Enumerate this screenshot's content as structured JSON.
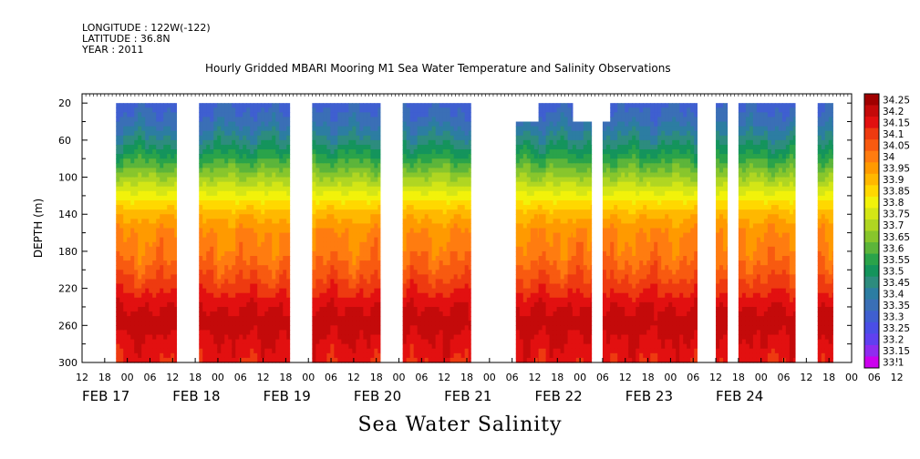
{
  "header": {
    "longitude": "LONGITUDE : 122W(-122)",
    "latitude": "LATITUDE : 36.8N",
    "year": "YEAR : 2011"
  },
  "chart_data": {
    "type": "heatmap",
    "title": "Hourly Gridded MBARI Mooring M1 Sea Water Temperature and Salinity Observations",
    "xlabel": "Sea Water Salinity",
    "ylabel": "DEPTH (m)",
    "x_range_hours": [
      12,
      216
    ],
    "x_ticks": {
      "hour_labels": [
        "12",
        "18",
        "00",
        "06",
        "12",
        "18",
        "00",
        "06",
        "12",
        "18",
        "00",
        "06",
        "12",
        "18",
        "00",
        "06",
        "12",
        "18",
        "00",
        "06",
        "12",
        "18",
        "00",
        "06",
        "12",
        "18",
        "00",
        "06",
        "12",
        "18",
        "00",
        "06",
        "12",
        "18",
        "00",
        "06",
        "12"
      ],
      "day_labels": [
        "FEB 17",
        "FEB 18",
        "FEB 19",
        "FEB 20",
        "FEB 21",
        "FEB 22",
        "FEB 23",
        "FEB 24"
      ]
    },
    "y_range": [
      10,
      300
    ],
    "y_reversed": true,
    "y_ticks": [
      20,
      60,
      100,
      140,
      180,
      220,
      260,
      300
    ],
    "color_levels": [
      33.1,
      33.15,
      33.2,
      33.25,
      33.3,
      33.35,
      33.4,
      33.45,
      33.5,
      33.55,
      33.6,
      33.65,
      33.7,
      33.75,
      33.8,
      33.85,
      33.9,
      33.95,
      34,
      34.05,
      34.1,
      34.15,
      34.2,
      34.25
    ],
    "colorbar_labels": [
      "34.25",
      "34.2",
      "34.15",
      "34.1",
      "34.05",
      "34",
      "33.95",
      "33.9",
      "33.85",
      "33.8",
      "33.75",
      "33.7",
      "33.65",
      "33.6",
      "33.55",
      "33.5",
      "33.45",
      "33.4",
      "33.35",
      "33.3",
      "33.25",
      "33.2",
      "33.15",
      "33.1"
    ],
    "colors": [
      "#cc00ee",
      "#8f2cf0",
      "#6040f0",
      "#4a4ee6",
      "#3f5fd0",
      "#3a6fb6",
      "#2c7da2",
      "#2d8c7e",
      "#14945c",
      "#2aa34a",
      "#5cb53a",
      "#88c62c",
      "#b0d622",
      "#d4e616",
      "#f2f20a",
      "#ffd800",
      "#ffb800",
      "#ff9a00",
      "#ff7c10",
      "#f85a10",
      "#ee3a10",
      "#e21010",
      "#c40a0a",
      "#a00000"
    ],
    "profile": [
      {
        "depth": 20,
        "salinity": 33.33
      },
      {
        "depth": 40,
        "salinity": 33.38
      },
      {
        "depth": 60,
        "salinity": 33.47
      },
      {
        "depth": 80,
        "salinity": 33.58
      },
      {
        "depth": 100,
        "salinity": 33.7
      },
      {
        "depth": 120,
        "salinity": 33.82
      },
      {
        "depth": 140,
        "salinity": 33.93
      },
      {
        "depth": 160,
        "salinity": 34.0
      },
      {
        "depth": 180,
        "salinity": 34.02
      },
      {
        "depth": 200,
        "salinity": 34.07
      },
      {
        "depth": 220,
        "salinity": 34.13
      },
      {
        "depth": 240,
        "salinity": 34.2
      },
      {
        "depth": 260,
        "salinity": 34.22
      },
      {
        "depth": 280,
        "salinity": 34.19
      },
      {
        "depth": 300,
        "salinity": 34.16
      }
    ],
    "data_segments": [
      {
        "start_hour": 21,
        "end_hour": 37,
        "top_depth": 20
      },
      {
        "start_hour": 43,
        "end_hour": 67,
        "top_depth": 20
      },
      {
        "start_hour": 73,
        "end_hour": 91,
        "top_depth": 20
      },
      {
        "start_hour": 97,
        "end_hour": 115,
        "top_depth": 20
      },
      {
        "start_hour": 127,
        "end_hour": 133,
        "top_depth": 40
      },
      {
        "start_hour": 133,
        "end_hour": 142,
        "top_depth": 20
      },
      {
        "start_hour": 142,
        "end_hour": 147,
        "top_depth": 40
      },
      {
        "start_hour": 150,
        "end_hour": 152,
        "top_depth": 40
      },
      {
        "start_hour": 152,
        "end_hour": 175,
        "top_depth": 20
      },
      {
        "start_hour": 180,
        "end_hour": 183,
        "top_depth": 20
      },
      {
        "start_hour": 186,
        "end_hour": 201,
        "top_depth": 20
      },
      {
        "start_hour": 207,
        "end_hour": 211,
        "top_depth": 20
      }
    ]
  }
}
